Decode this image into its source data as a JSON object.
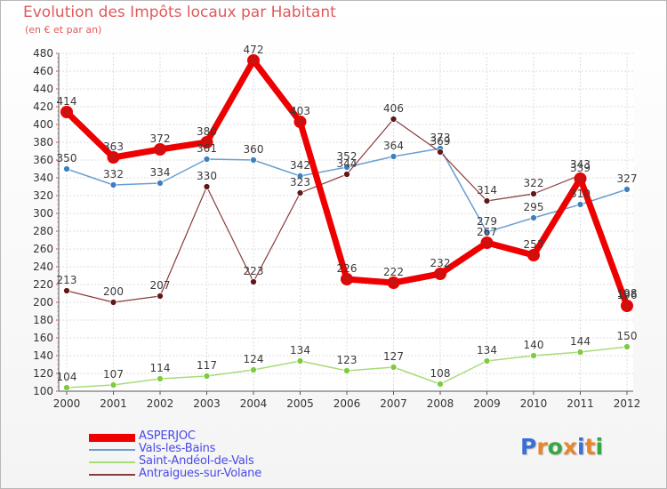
{
  "title": "Evolution des Impôts locaux par Habitant",
  "subtitle": "(en € et par an)",
  "brand": {
    "letters": [
      "P",
      "r",
      "o",
      "x",
      "i",
      "t",
      "i"
    ],
    "colors": [
      "#3b6fd8",
      "#e8862d",
      "#35a845",
      "#e8862d",
      "#3b6fd8",
      "#e8862d",
      "#35a845"
    ]
  },
  "chart_data": {
    "type": "line",
    "x": [
      "2000",
      "2001",
      "2002",
      "2003",
      "2004",
      "2005",
      "2006",
      "2007",
      "2008",
      "2009",
      "2010",
      "2011",
      "2012"
    ],
    "ylim": [
      100,
      480
    ],
    "yticks": [
      "100",
      "120",
      "140",
      "160",
      "180",
      "200",
      "220",
      "240",
      "260",
      "280",
      "300",
      "320",
      "340",
      "360",
      "380",
      "400",
      "420",
      "440",
      "460",
      "480"
    ],
    "grid": true,
    "legend_position": "bottom-left",
    "series": [
      {
        "name": "ASPERJOC",
        "color": "#ee0000",
        "marker": "#cc1111",
        "width": 7,
        "radius": 6,
        "values": [
          414,
          363,
          372,
          380,
          472,
          403,
          226,
          222,
          232,
          267,
          253,
          339,
          196
        ],
        "labels": [
          "414",
          "363",
          "372",
          "380",
          "472",
          "403",
          "226",
          "222",
          "232",
          "267",
          "253",
          "339",
          "196"
        ]
      },
      {
        "name": "Vals-les-Bains",
        "color": "#6a9fd0",
        "marker": "#3d7fc0",
        "width": 1.5,
        "radius": 3.5,
        "values": [
          350,
          332,
          334,
          361,
          360,
          342,
          352,
          364,
          373,
          279,
          295,
          310,
          327
        ],
        "labels": [
          "350",
          "332",
          "334",
          "361",
          "360",
          "342",
          "352",
          "364",
          "373",
          "279",
          "295",
          "310",
          "327"
        ]
      },
      {
        "name": "Saint-Andéol-de-Vals",
        "color": "#a8dc78",
        "marker": "#7ccc3c",
        "width": 1.5,
        "radius": 3.5,
        "values": [
          104,
          107,
          114,
          117,
          124,
          134,
          123,
          127,
          108,
          134,
          140,
          144,
          150
        ],
        "labels": [
          "104",
          "107",
          "114",
          "117",
          "124",
          "134",
          "123",
          "127",
          "108",
          "134",
          "140",
          "144",
          "150"
        ]
      },
      {
        "name": "Antraigues-sur-Volane",
        "color": "#8a3a3a",
        "marker": "#5e1818",
        "width": 1.2,
        "radius": 3.5,
        "values": [
          213,
          200,
          207,
          330,
          223,
          323,
          344,
          406,
          369,
          314,
          322,
          343,
          198
        ],
        "labels": [
          "213",
          "200",
          "207",
          "330",
          "223",
          "323",
          "344",
          "406",
          "369",
          "314",
          "322",
          "343",
          "198"
        ]
      }
    ]
  }
}
